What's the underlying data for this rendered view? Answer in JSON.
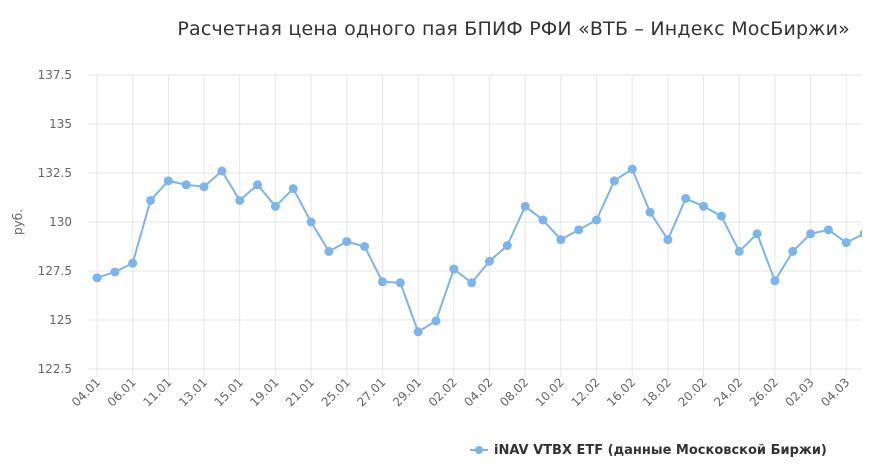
{
  "chart_data": {
    "type": "line",
    "title": "Расчетная цена одного пая БПИФ РФИ «ВТБ – Индекс МосБиржи»",
    "xlabel": "",
    "ylabel": "руб.",
    "ylim": [
      122.5,
      137.5
    ],
    "yticks": [
      "122.5",
      "125",
      "127.5",
      "130",
      "132.5",
      "135",
      "137.5"
    ],
    "x_tick_labels": [
      "04.01",
      "06.01",
      "11.01",
      "13.01",
      "15.01",
      "19.01",
      "21.01",
      "25.01",
      "27.01",
      "29.01",
      "02.02",
      "04.02",
      "08.02",
      "10.02",
      "12.02",
      "16.02",
      "18.02",
      "20.02",
      "24.02",
      "26.02",
      "02.03",
      "04.03"
    ],
    "grid": true,
    "legend_position": "bottom-right",
    "series": [
      {
        "name": "iNAV VTBX ETF (данные Московской Биржи)",
        "color": "#7cb5ec",
        "values": [
          127.15,
          127.45,
          127.9,
          131.1,
          132.1,
          131.9,
          131.8,
          132.6,
          131.1,
          131.9,
          130.8,
          131.7,
          130.0,
          128.5,
          129.0,
          128.75,
          126.95,
          126.9,
          124.4,
          124.95,
          127.6,
          126.9,
          128.0,
          128.8,
          130.8,
          130.1,
          129.1,
          129.6,
          130.1,
          132.1,
          132.7,
          130.5,
          129.1,
          131.2,
          130.8,
          130.3,
          128.5,
          129.4,
          127.0,
          128.5,
          129.4,
          129.6,
          128.95,
          129.4
        ]
      }
    ]
  },
  "legend": {
    "items": [
      {
        "label": "iNAV VTBX ETF (данные Московской Биржи)"
      }
    ]
  }
}
